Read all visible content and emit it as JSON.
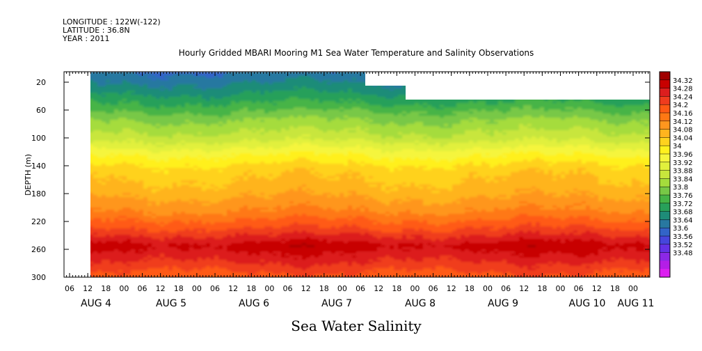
{
  "header": {
    "longitude": "LONGITUDE : 122W(-122)",
    "latitude": "LATITUDE : 36.8N",
    "year": "YEAR : 2011"
  },
  "chart_data": {
    "type": "heatmap",
    "title": "Hourly Gridded MBARI Mooring M1 Sea Water Temperature and Salinity Observations",
    "xlabel": "Sea Water Salinity",
    "ylabel": "DEPTH (m)",
    "ylim": [
      300,
      5
    ],
    "y_ticks": [
      20,
      60,
      100,
      140,
      180,
      220,
      260,
      300
    ],
    "x_hour_ticks": [
      "06",
      "12",
      "18",
      "00",
      "06",
      "12",
      "18",
      "00",
      "06",
      "12",
      "18",
      "00",
      "06",
      "12",
      "18",
      "00",
      "06",
      "12",
      "18",
      "00",
      "06",
      "12",
      "18",
      "00",
      "06",
      "12",
      "18",
      "00",
      "06",
      "12",
      "18",
      "00"
    ],
    "x_day_labels": [
      "AUG  4",
      "AUG  5",
      "AUG  6",
      "AUG  7",
      "AUG  8",
      "AUG  9",
      "AUG 10",
      "AUG 11"
    ],
    "data_start": "AUG 4 12:00",
    "data_end": "AUG 11 06:00",
    "colorbar_levels": [
      "34.32",
      "34.28",
      "34.24",
      "34.2",
      "34.16",
      "34.12",
      "34.08",
      "34.04",
      "34",
      "33.96",
      "33.92",
      "33.88",
      "33.84",
      "33.8",
      "33.76",
      "33.72",
      "33.68",
      "33.64",
      "33.6",
      "33.56",
      "33.52",
      "33.48"
    ],
    "colorbar_colors": [
      "#a00000",
      "#c80000",
      "#dc1e1e",
      "#f03c1e",
      "#ff5a14",
      "#ff7814",
      "#ff961e",
      "#ffb41e",
      "#ffd21e",
      "#fff01e",
      "#f5f53c",
      "#e1f03c",
      "#c8e63c",
      "#a5dc3c",
      "#78c846",
      "#46b446",
      "#28a05a",
      "#1e8c78",
      "#2878a0",
      "#3264c8",
      "#4646dc",
      "#6432e6",
      "#8c28e6",
      "#b41ee6",
      "#dc1ef0"
    ],
    "profile": [
      {
        "depth": 5,
        "value": 33.6
      },
      {
        "depth": 30,
        "value": 33.66
      },
      {
        "depth": 50,
        "value": 33.72
      },
      {
        "depth": 75,
        "value": 33.8
      },
      {
        "depth": 100,
        "value": 33.86
      },
      {
        "depth": 125,
        "value": 33.96
      },
      {
        "depth": 145,
        "value": 34.02
      },
      {
        "depth": 175,
        "value": 34.06
      },
      {
        "depth": 205,
        "value": 34.12
      },
      {
        "depth": 230,
        "value": 34.2
      },
      {
        "depth": 255,
        "value": 34.3
      },
      {
        "depth": 275,
        "value": 34.25
      },
      {
        "depth": 300,
        "value": 34.18
      }
    ]
  }
}
